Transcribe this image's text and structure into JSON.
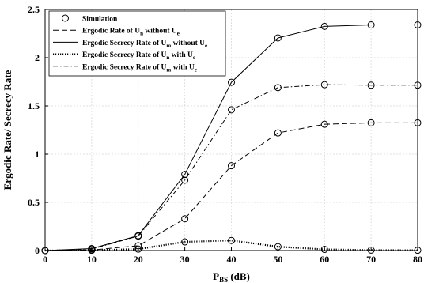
{
  "chart_data": {
    "type": "line",
    "title": "",
    "xlabel": "P",
    "xlabel_sub": "BS",
    "xlabel_unit": " (dB)",
    "ylabel": "Ergodic Rate/ Secrecy Rate",
    "xlim": [
      0,
      80
    ],
    "ylim": [
      0,
      2.5
    ],
    "xticks": [
      0,
      10,
      20,
      30,
      40,
      50,
      60,
      70,
      80
    ],
    "yticks": [
      0,
      0.5,
      1,
      1.5,
      2,
      2.5
    ],
    "ytick_labels": [
      "0",
      "0.5",
      "1",
      "1.5",
      "2",
      "2.5"
    ],
    "grid": true,
    "legend_position": "top-left",
    "x": [
      0,
      10,
      20,
      30,
      40,
      50,
      60,
      70,
      80
    ],
    "legend": [
      {
        "style": "marker",
        "parts": [
          [
            "Simulation",
            ""
          ]
        ]
      },
      {
        "style": "dashed",
        "parts": [
          [
            "Ergodic Rate of U",
            ""
          ],
          [
            "n",
            "sub"
          ],
          [
            " without U",
            ""
          ],
          [
            "e",
            "sub"
          ]
        ]
      },
      {
        "style": "solid",
        "parts": [
          [
            "Ergodic Secrecy Rate of U",
            ""
          ],
          [
            "m",
            "sub"
          ],
          [
            " without U",
            ""
          ],
          [
            "e",
            "sub"
          ]
        ]
      },
      {
        "style": "dotted",
        "parts": [
          [
            "Ergodic Secrecy Rate of U",
            ""
          ],
          [
            "n",
            "sub"
          ],
          [
            " with U",
            ""
          ],
          [
            "e",
            "sub"
          ]
        ]
      },
      {
        "style": "dashdot",
        "parts": [
          [
            "Ergodic Secrecy Rate of U",
            ""
          ],
          [
            "m",
            "sub"
          ],
          [
            " with U",
            ""
          ],
          [
            "e",
            "sub"
          ]
        ]
      }
    ],
    "series": [
      {
        "style": "dashed",
        "values": [
          0,
          0.005,
          0.05,
          0.33,
          0.88,
          1.22,
          1.31,
          1.325,
          1.325
        ]
      },
      {
        "style": "solid",
        "values": [
          0,
          0.02,
          0.155,
          0.79,
          1.745,
          2.205,
          2.325,
          2.34,
          2.34
        ]
      },
      {
        "style": "dotted",
        "values": [
          0,
          0.003,
          0.015,
          0.09,
          0.105,
          0.04,
          0.012,
          0.005,
          0.003
        ]
      },
      {
        "style": "dashdot",
        "values": [
          0,
          0.015,
          0.15,
          0.73,
          1.46,
          1.69,
          1.72,
          1.715,
          1.715
        ]
      }
    ],
    "markers": [
      {
        "series": 0,
        "values": [
          0,
          0.005,
          0.05,
          0.33,
          0.88,
          1.22,
          1.31,
          1.325,
          1.325
        ]
      },
      {
        "series": 1,
        "values": [
          0,
          0.02,
          0.155,
          0.79,
          1.745,
          2.205,
          2.325,
          2.34,
          2.34
        ]
      },
      {
        "series": 2,
        "values": [
          0,
          0.003,
          0.015,
          0.09,
          0.105,
          0.04,
          0.012,
          0.005,
          0.003
        ]
      },
      {
        "series": 3,
        "values": [
          0,
          0.015,
          0.15,
          0.73,
          1.46,
          1.69,
          1.72,
          1.715,
          1.715
        ]
      }
    ]
  }
}
